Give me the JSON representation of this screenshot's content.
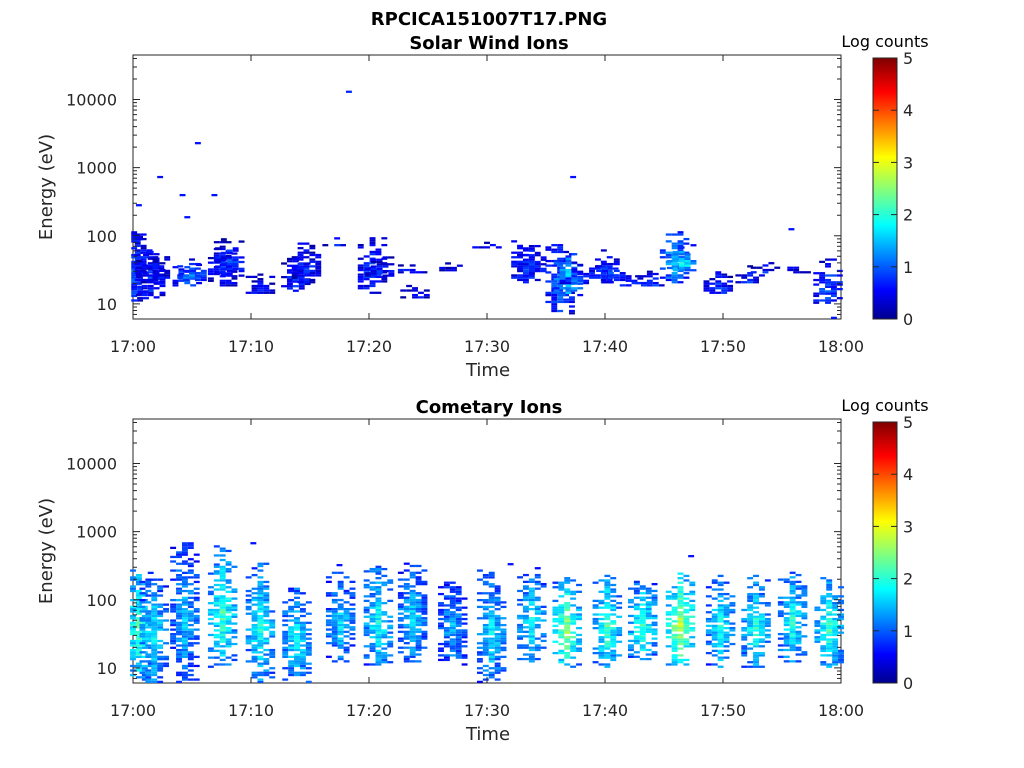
{
  "figure_title": "RPCICA151007T17.PNG",
  "chart_data": [
    {
      "type": "heatmap",
      "title": "Solar Wind Ions",
      "xlabel": "Time",
      "ylabel": "Energy (eV)",
      "x_ticks": [
        "17:00",
        "17:10",
        "17:20",
        "17:30",
        "17:40",
        "17:50",
        "18:00"
      ],
      "xlim": [
        "17:00",
        "18:00"
      ],
      "y_scale": "log",
      "ylim": [
        6,
        45000
      ],
      "y_ticks": [
        "10",
        "100",
        "1000",
        "10000"
      ],
      "grid": false,
      "colorbar": {
        "label": "Log counts",
        "range": [
          0,
          5
        ],
        "ticks": [
          "0",
          "1",
          "2",
          "3",
          "4",
          "5"
        ],
        "colormap": "jet"
      },
      "events": [
        {
          "t": 0.1,
          "e": [
            10,
            110
          ],
          "c": 1.0
        },
        {
          "t": 0.4,
          "e": [
            20,
            110
          ],
          "c": 0.8
        },
        {
          "t": 1.5,
          "e": [
            12,
            60
          ],
          "c": 0.9
        },
        {
          "t": 1.9,
          "e": [
            20,
            50
          ],
          "c": 0.7
        },
        {
          "t": 4.6,
          "e": [
            18,
            45
          ],
          "c": 1.1
        },
        {
          "t": 5.0,
          "e": [
            20,
            45
          ],
          "c": 1.2
        },
        {
          "t": 7.6,
          "e": [
            18,
            90
          ],
          "c": 0.8
        },
        {
          "t": 8.2,
          "e": [
            25,
            90
          ],
          "c": 0.9
        },
        {
          "t": 10.8,
          "e": [
            14,
            30
          ],
          "c": 0.7
        },
        {
          "t": 13.8,
          "e": [
            15,
            50
          ],
          "c": 0.8
        },
        {
          "t": 14.7,
          "e": [
            20,
            75
          ],
          "c": 0.8
        },
        {
          "t": 17.3,
          "e": [
            70,
            90
          ],
          "c": 0.8
        },
        {
          "t": 20.3,
          "e": [
            14,
            90
          ],
          "c": 0.9
        },
        {
          "t": 20.9,
          "e": [
            25,
            50
          ],
          "c": 0.8
        },
        {
          "t": 23.7,
          "e": [
            28,
            45
          ],
          "c": 0.8
        },
        {
          "t": 23.9,
          "e": [
            12,
            18
          ],
          "c": 0.6
        },
        {
          "t": 27.2,
          "e": [
            30,
            40
          ],
          "c": 0.7
        },
        {
          "t": 30.0,
          "e": [
            65,
            80
          ],
          "c": 0.7
        },
        {
          "t": 33.3,
          "e": [
            20,
            80
          ],
          "c": 1.0
        },
        {
          "t": 33.8,
          "e": [
            25,
            70
          ],
          "c": 0.9
        },
        {
          "t": 36.2,
          "e": [
            7,
            80
          ],
          "c": 1.1
        },
        {
          "t": 36.9,
          "e": [
            12,
            60
          ],
          "c": 1.7
        },
        {
          "t": 37.4,
          "e": [
            18,
            40
          ],
          "c": 1.0
        },
        {
          "t": 39.9,
          "e": [
            20,
            60
          ],
          "c": 0.9
        },
        {
          "t": 40.5,
          "e": [
            20,
            50
          ],
          "c": 1.0
        },
        {
          "t": 42.5,
          "e": [
            18,
            25
          ],
          "c": 0.9
        },
        {
          "t": 43.8,
          "e": [
            18,
            30
          ],
          "c": 1.0
        },
        {
          "t": 45.9,
          "e": [
            20,
            120
          ],
          "c": 1.5
        },
        {
          "t": 46.5,
          "e": [
            30,
            75
          ],
          "c": 1.9
        },
        {
          "t": 47.0,
          "e": [
            35,
            45
          ],
          "c": 2.0
        },
        {
          "t": 49.6,
          "e": [
            14,
            30
          ],
          "c": 0.9
        },
        {
          "t": 52.3,
          "e": [
            20,
            35
          ],
          "c": 0.8
        },
        {
          "t": 53.6,
          "e": [
            28,
            40
          ],
          "c": 0.8
        },
        {
          "t": 56.2,
          "e": [
            28,
            35
          ],
          "c": 0.7
        },
        {
          "t": 58.9,
          "e": [
            10,
            45
          ],
          "c": 1.0
        }
      ],
      "sparse_points": [
        {
          "t": 18.3,
          "e": 12500,
          "c": 0.8
        },
        {
          "t": 5.5,
          "e": 2200,
          "c": 0.7
        },
        {
          "t": 2.3,
          "e": 700,
          "c": 0.7
        },
        {
          "t": 4.2,
          "e": 380,
          "c": 0.7
        },
        {
          "t": 6.9,
          "e": 380,
          "c": 0.7
        },
        {
          "t": 4.6,
          "e": 180,
          "c": 0.7
        },
        {
          "t": 0.5,
          "e": 270,
          "c": 0.7
        },
        {
          "t": 37.3,
          "e": 700,
          "c": 0.7
        },
        {
          "t": 55.8,
          "e": 120,
          "c": 0.7
        },
        {
          "t": 59.4,
          "e": 6,
          "c": 0.7
        }
      ]
    },
    {
      "type": "heatmap",
      "title": "Cometary Ions",
      "xlabel": "Time",
      "ylabel": "Energy (eV)",
      "x_ticks": [
        "17:00",
        "17:10",
        "17:20",
        "17:30",
        "17:40",
        "17:50",
        "18:00"
      ],
      "xlim": [
        "17:00",
        "18:00"
      ],
      "y_scale": "log",
      "ylim": [
        6,
        45000
      ],
      "y_ticks": [
        "10",
        "100",
        "1000",
        "10000"
      ],
      "grid": false,
      "colorbar": {
        "label": "Log counts",
        "range": [
          0,
          5
        ],
        "ticks": [
          "0",
          "1",
          "2",
          "3",
          "4",
          "5"
        ],
        "colormap": "jet"
      },
      "events": [
        {
          "t": 0.5,
          "e": [
            6,
            300
          ],
          "c": 2.2
        },
        {
          "t": 1.8,
          "e": [
            6,
            200
          ],
          "c": 1.9
        },
        {
          "t": 4.4,
          "e": [
            6,
            700
          ],
          "c": 1.6
        },
        {
          "t": 7.6,
          "e": [
            10,
            600
          ],
          "c": 2.2
        },
        {
          "t": 10.8,
          "e": [
            6,
            350
          ],
          "c": 2.0
        },
        {
          "t": 13.9,
          "e": [
            6,
            150
          ],
          "c": 1.9
        },
        {
          "t": 17.6,
          "e": [
            12,
            250
          ],
          "c": 1.7
        },
        {
          "t": 20.8,
          "e": [
            10,
            300
          ],
          "c": 2.0
        },
        {
          "t": 23.7,
          "e": [
            12,
            350
          ],
          "c": 1.7
        },
        {
          "t": 27.1,
          "e": [
            10,
            200
          ],
          "c": 1.5
        },
        {
          "t": 30.4,
          "e": [
            6,
            260
          ],
          "c": 1.8
        },
        {
          "t": 33.8,
          "e": [
            12,
            280
          ],
          "c": 1.9
        },
        {
          "t": 36.8,
          "e": [
            10,
            200
          ],
          "c": 2.6
        },
        {
          "t": 40.2,
          "e": [
            10,
            230
          ],
          "c": 2.2
        },
        {
          "t": 43.2,
          "e": [
            12,
            200
          ],
          "c": 2.2
        },
        {
          "t": 46.4,
          "e": [
            10,
            250
          ],
          "c": 2.8
        },
        {
          "t": 49.8,
          "e": [
            10,
            230
          ],
          "c": 2.0
        },
        {
          "t": 52.8,
          "e": [
            10,
            220
          ],
          "c": 2.1
        },
        {
          "t": 55.9,
          "e": [
            12,
            280
          ],
          "c": 2.0
        },
        {
          "t": 59.0,
          "e": [
            10,
            200
          ],
          "c": 2.2
        }
      ],
      "sparse_points": [
        {
          "t": 47.3,
          "e": 420,
          "c": 0.7
        },
        {
          "t": 10.2,
          "e": 650,
          "c": 0.7
        },
        {
          "t": 17.5,
          "e": 310,
          "c": 0.7
        },
        {
          "t": 32.0,
          "e": 320,
          "c": 0.7
        }
      ]
    }
  ]
}
